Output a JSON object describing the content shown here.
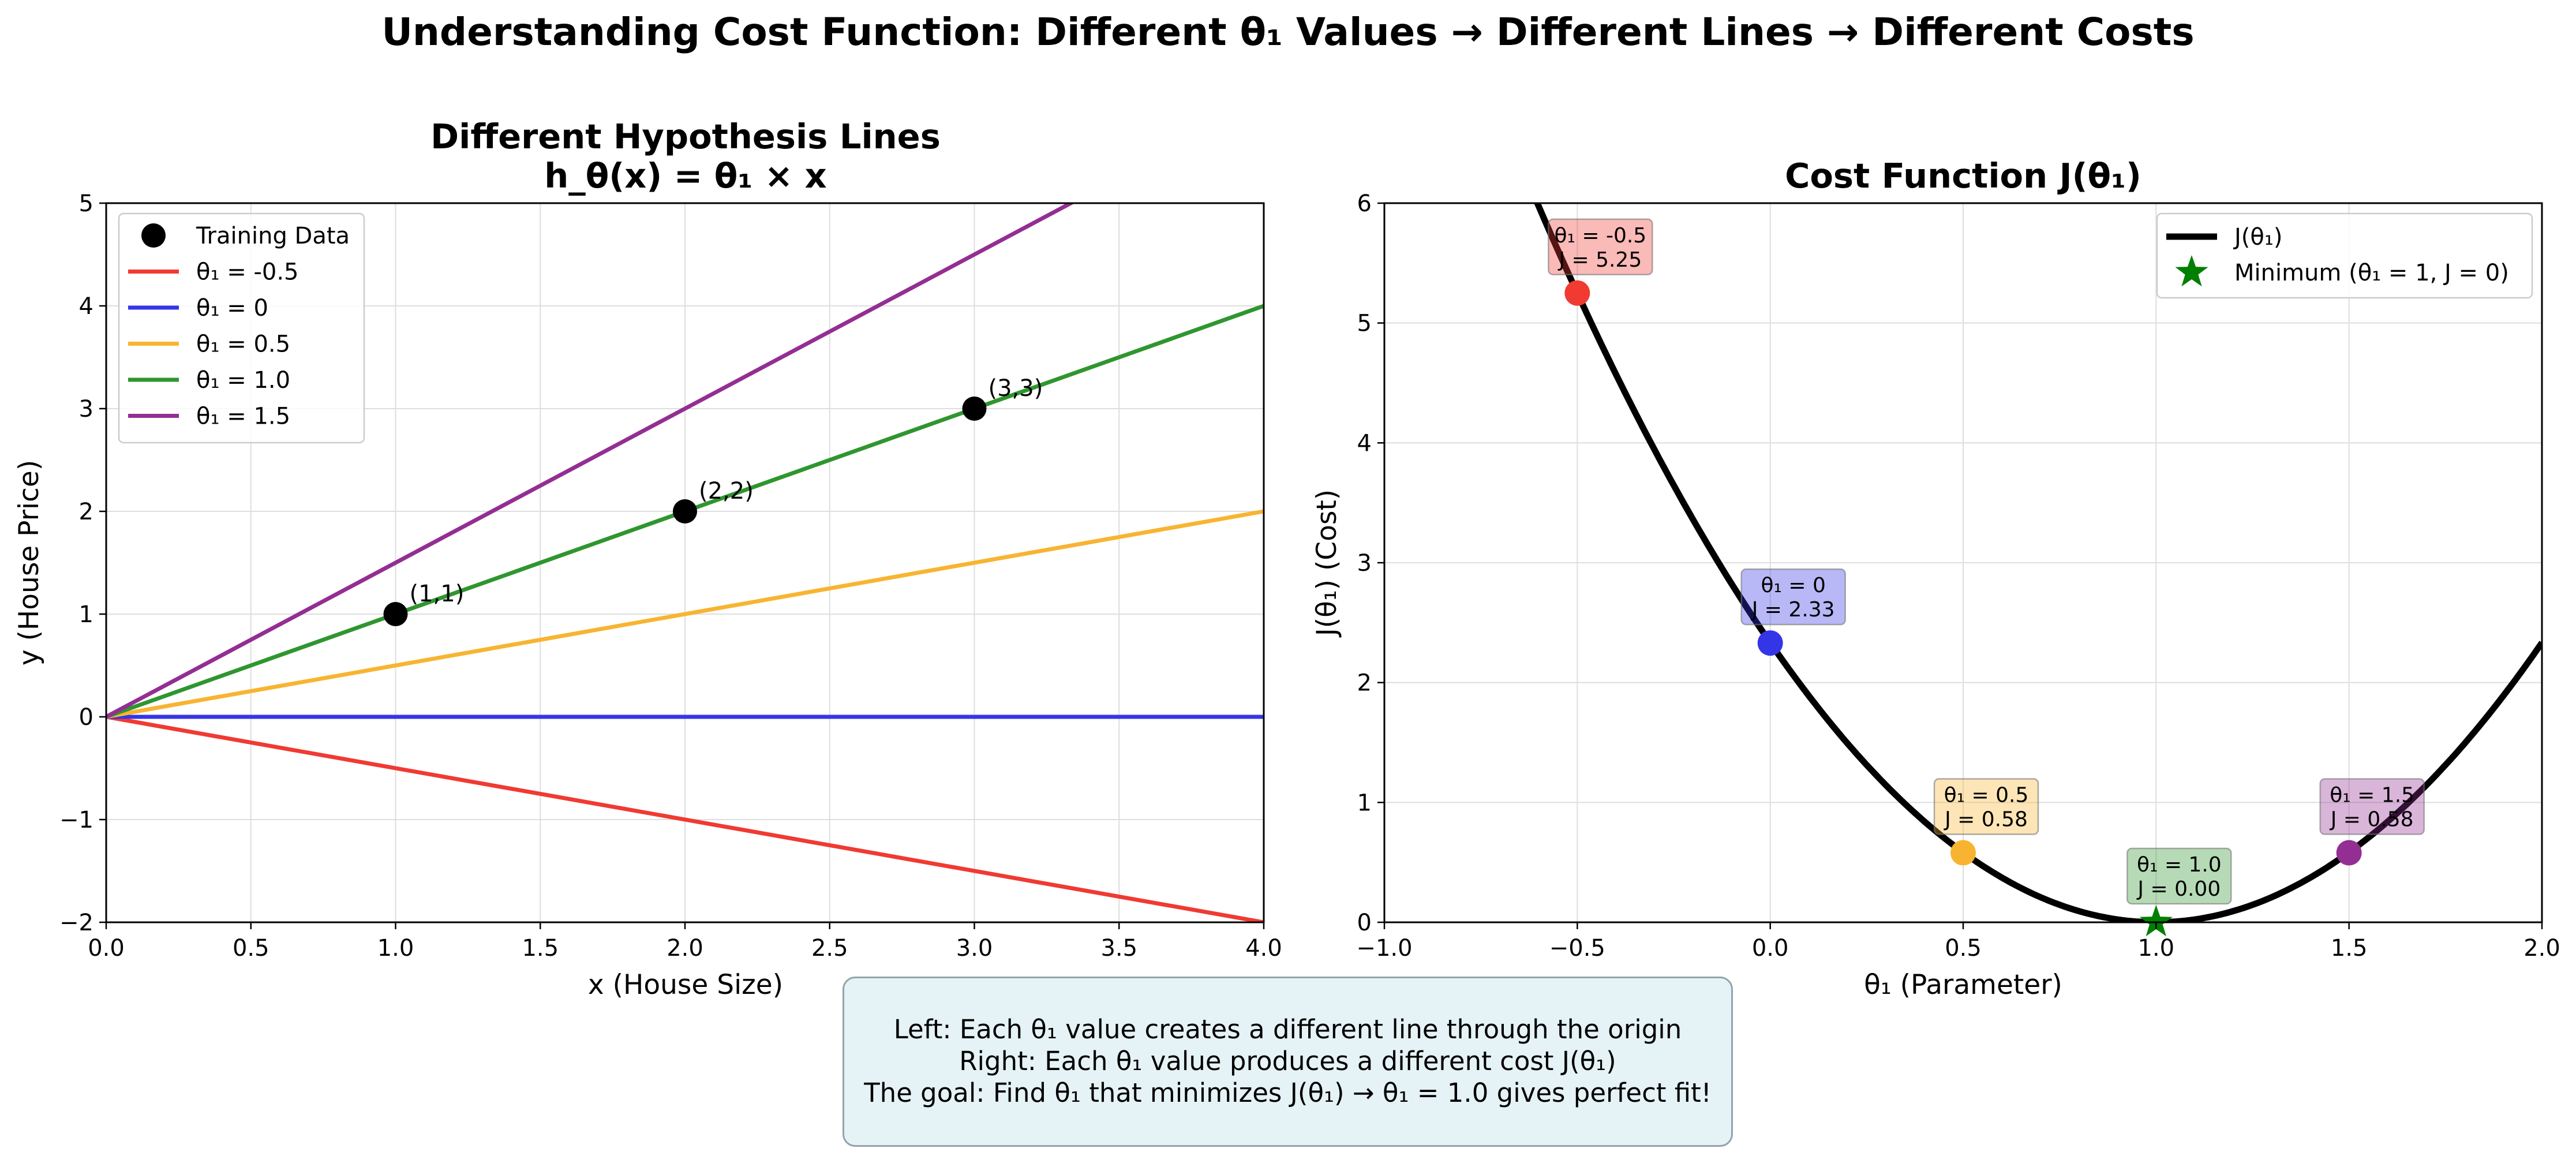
{
  "suptitle": "Understanding Cost Function: Different θ₁ Values → Different Lines → Different Costs",
  "colors": {
    "red": "#f03a32",
    "blue": "#3535e8",
    "orange": "#f8b431",
    "green": "#2f962f",
    "purple": "#932e93",
    "cost_curve": "#000000",
    "minimum_star": "#007f00",
    "note_bg": "#e5f2f6"
  },
  "chart_data": [
    {
      "type": "line",
      "title": "Different Hypothesis Lines",
      "subtitle": "h_θ(x) = θ₁ × x",
      "xlabel": "x (House Size)",
      "ylabel": "y (House Price)",
      "xlim": [
        0,
        4
      ],
      "ylim": [
        -2,
        5
      ],
      "xticks": [
        "0.0",
        "0.5",
        "1.0",
        "1.5",
        "2.0",
        "2.5",
        "3.0",
        "3.5",
        "4.0"
      ],
      "yticks": [
        "−2",
        "−1",
        "0",
        "1",
        "2",
        "3",
        "4",
        "5"
      ],
      "grid": true,
      "legend_position": "upper-left",
      "series": [
        {
          "name": "θ₁ = -0.5",
          "slope": -0.5,
          "color": "#f03a32"
        },
        {
          "name": "θ₁ = 0",
          "slope": 0,
          "color": "#3535e8"
        },
        {
          "name": "θ₁ = 0.5",
          "slope": 0.5,
          "color": "#f8b431"
        },
        {
          "name": "θ₁ = 1.0",
          "slope": 1.0,
          "color": "#2f962f"
        },
        {
          "name": "θ₁ = 1.5",
          "slope": 1.5,
          "color": "#932e93"
        }
      ],
      "scatter": {
        "name": "Training Data",
        "points": [
          {
            "x": 1,
            "y": 1,
            "label": "(1,1)"
          },
          {
            "x": 2,
            "y": 2,
            "label": "(2,2)"
          },
          {
            "x": 3,
            "y": 3,
            "label": "(3,3)"
          }
        ]
      }
    },
    {
      "type": "line",
      "title": "Cost Function J(θ₁)",
      "xlabel": "θ₁ (Parameter)",
      "ylabel": "J(θ₁) (Cost)",
      "xlim": [
        -1,
        2
      ],
      "ylim": [
        0,
        6
      ],
      "xticks": [
        "−1.0",
        "−0.5",
        "0.0",
        "0.5",
        "1.0",
        "1.5",
        "2.0"
      ],
      "yticks": [
        "0",
        "1",
        "2",
        "3",
        "4",
        "5",
        "6"
      ],
      "grid": true,
      "legend_position": "upper-right",
      "curve": {
        "name": "J(θ₁)",
        "formula": "J = (14/6)·(θ₁ − 1)²"
      },
      "minimum": {
        "name": "Minimum (θ₁ = 1, J = 0)",
        "x": 1,
        "y": 0
      },
      "points": [
        {
          "x": -0.5,
          "y": 5.25,
          "label_line1": "θ₁ = -0.5",
          "label_line2": "J = 5.25",
          "color": "#f03a32"
        },
        {
          "x": 0,
          "y": 2.33,
          "label_line1": "θ₁ = 0",
          "label_line2": "J = 2.33",
          "color": "#3535e8"
        },
        {
          "x": 0.5,
          "y": 0.58,
          "label_line1": "θ₁ = 0.5",
          "label_line2": "J = 0.58",
          "color": "#f8b431"
        },
        {
          "x": 1.0,
          "y": 0.0,
          "label_line1": "θ₁ = 1.0",
          "label_line2": "J = 0.00",
          "color": "#2f962f"
        },
        {
          "x": 1.5,
          "y": 0.58,
          "label_line1": "θ₁ = 1.5",
          "label_line2": "J = 0.58",
          "color": "#932e93"
        }
      ]
    }
  ],
  "note": {
    "line1": "Left: Each θ₁ value creates a different line through the origin",
    "line2": "Right: Each θ₁ value produces a different cost J(θ₁)",
    "line3": "The goal: Find θ₁ that minimizes J(θ₁) → θ₁ = 1.0 gives perfect fit!"
  }
}
